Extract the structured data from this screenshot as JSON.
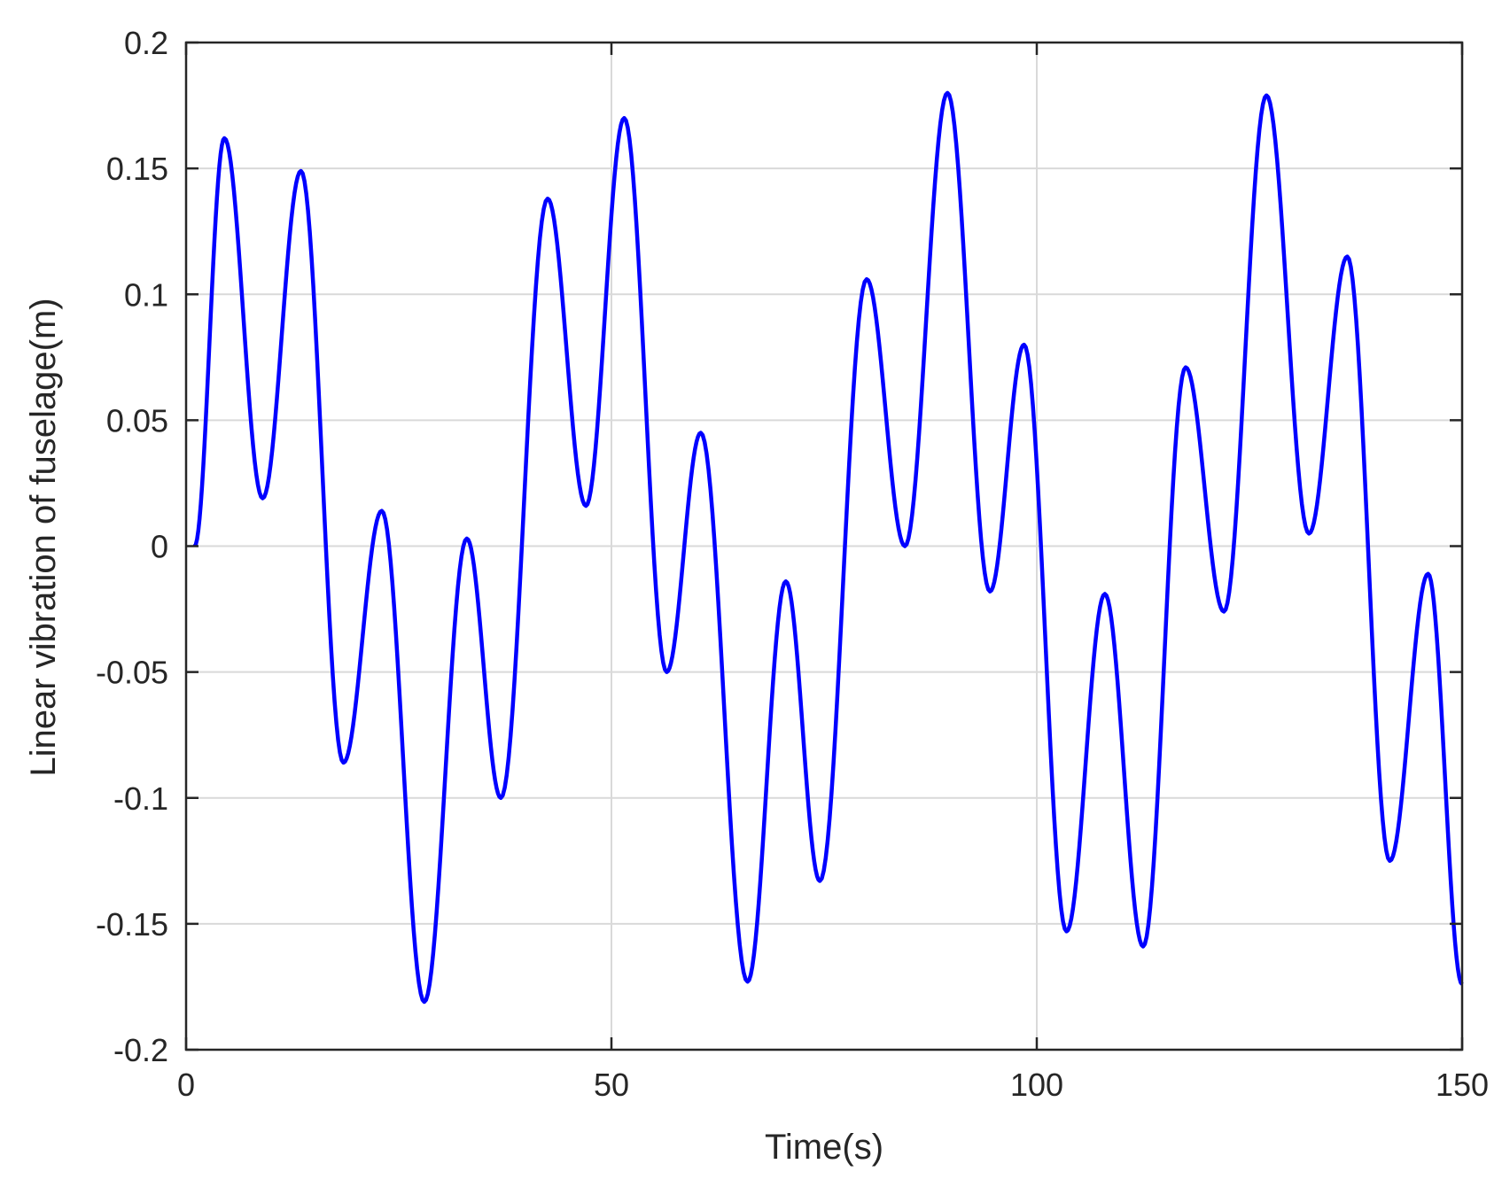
{
  "chart_data": {
    "type": "line",
    "title": "",
    "xlabel": "Time(s)",
    "ylabel": "Linear vibration of fuselage(m)",
    "xlim": [
      0,
      150
    ],
    "ylim": [
      -0.2,
      0.2
    ],
    "x_ticks": [
      0,
      50,
      100,
      150
    ],
    "x_tick_labels": [
      "0",
      "50",
      "100",
      "150"
    ],
    "y_ticks": [
      -0.2,
      -0.15,
      -0.1,
      -0.05,
      0,
      0.05,
      0.1,
      0.15,
      0.2
    ],
    "y_tick_labels": [
      "-0.2",
      "-0.15",
      "-0.1",
      "-0.05",
      "0",
      "0.05",
      "0.1",
      "0.15",
      "0.2"
    ],
    "grid": true,
    "legend": "none",
    "series": [
      {
        "color": "#0000ff",
        "x": [
          1,
          4.5,
          9,
          13.5,
          18.5,
          23,
          28,
          33,
          37,
          42.5,
          47,
          51.5,
          56.5,
          60.5,
          66,
          70.5,
          74.5,
          80,
          84.5,
          89.5,
          94.5,
          98.5,
          103.5,
          108,
          112.5,
          117.5,
          122,
          127,
          132,
          136.5,
          141.5,
          146,
          150
        ],
        "y": [
          0,
          0.162,
          0.019,
          0.149,
          -0.086,
          0.014,
          -0.181,
          0.003,
          -0.1,
          0.138,
          0.016,
          0.17,
          -0.05,
          0.045,
          -0.173,
          -0.014,
          -0.133,
          0.106,
          0.0,
          0.18,
          -0.018,
          0.08,
          -0.153,
          -0.019,
          -0.159,
          0.071,
          -0.026,
          0.179,
          0.005,
          0.115,
          -0.125,
          -0.011,
          -0.174
        ]
      }
    ]
  }
}
